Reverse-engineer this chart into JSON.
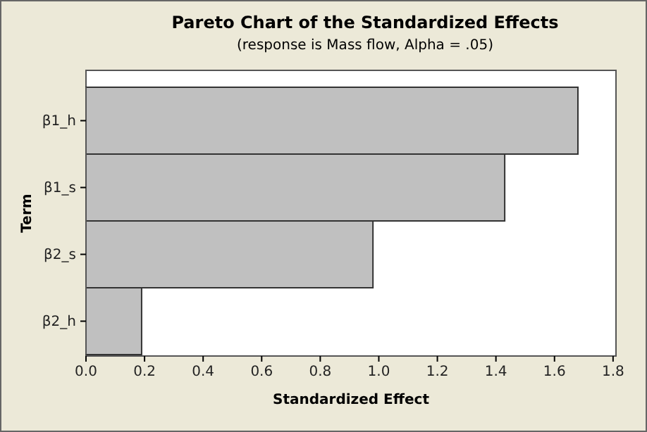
{
  "chart_data": {
    "type": "bar",
    "orientation": "horizontal",
    "title": "Pareto Chart of the Standardized Effects",
    "subtitle": "(response is Mass flow, Alpha = .05)",
    "xlabel": "Standardized Effect",
    "ylabel": "Term",
    "categories": [
      "β1_h",
      "β1_s",
      "β2_s",
      "β2_h"
    ],
    "values": [
      1.68,
      1.43,
      0.98,
      0.19
    ],
    "color": "#c0c0c0",
    "xlim": [
      0,
      1.81
    ],
    "xticks": [
      {
        "value": 0,
        "label": "0.0"
      },
      0.2,
      0.4,
      0.6,
      0.8,
      {
        "value": 1,
        "label": "1.0"
      },
      1.2,
      1.4,
      1.6,
      1.8
    ],
    "grid": false
  }
}
